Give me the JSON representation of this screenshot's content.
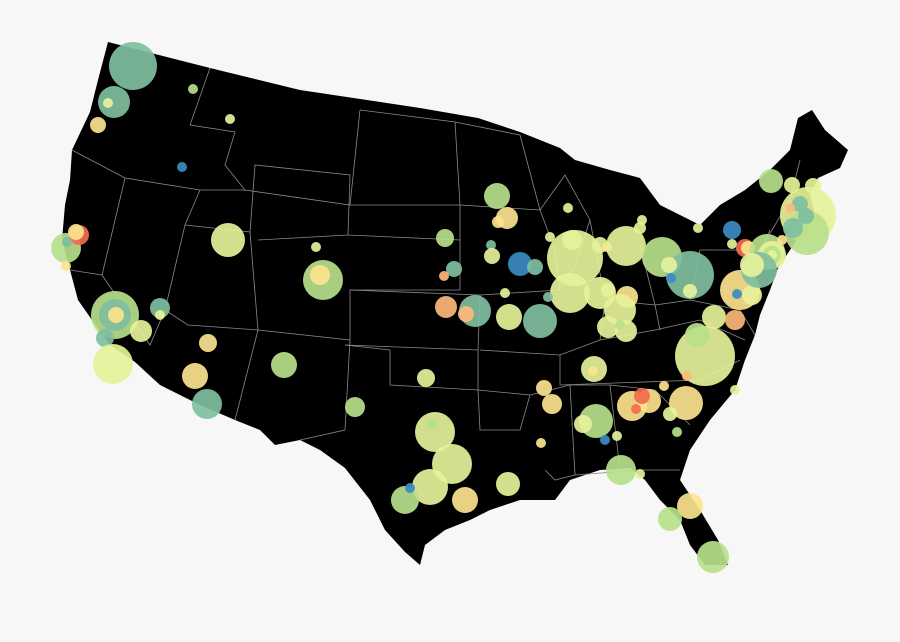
{
  "map": {
    "region": "contiguous-united-states",
    "land_color": "#000000",
    "border_color": "#8a8a8a",
    "background_color": "#f7f7f7",
    "marker_type": "bubble",
    "palette": {
      "blue": "#3b8bc2",
      "teal": "#7fbf9f",
      "green": "#b8e08a",
      "light": "#e6f29a",
      "yellow": "#fde38e",
      "orange": "#fdb97a",
      "red": "#f26c4f"
    },
    "target_marker": "ring-marker-icon"
  }
}
